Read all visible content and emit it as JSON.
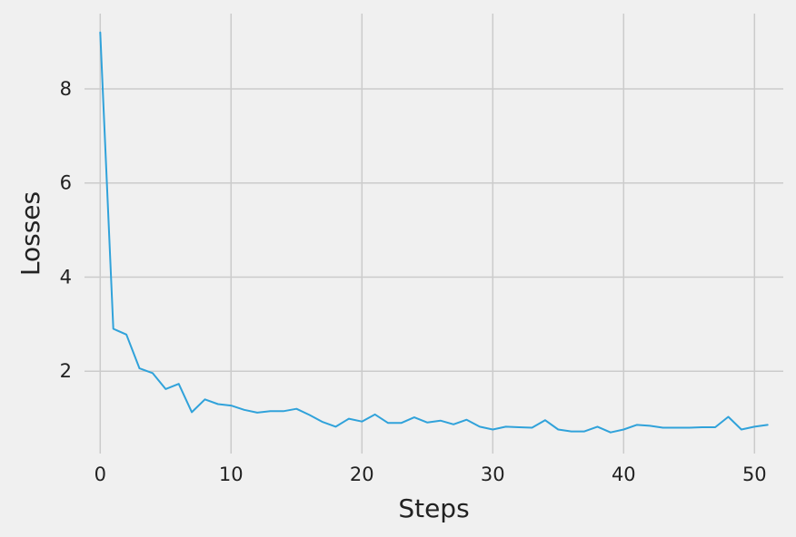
{
  "chart_data": {
    "type": "line",
    "title": "",
    "xlabel": "Steps",
    "ylabel": "Losses",
    "xlim": [
      -1.2,
      52.2
    ],
    "ylim": [
      0.25,
      9.6
    ],
    "xticks": [
      0,
      10,
      20,
      30,
      40,
      50
    ],
    "yticks": [
      2,
      4,
      6,
      8
    ],
    "grid": true,
    "colors": {
      "background": "#f0f0f0",
      "grid": "#cbcbcb",
      "line": "#30a2da"
    },
    "series": [
      {
        "x": [
          0,
          1,
          2,
          3,
          4,
          5,
          6,
          7,
          8,
          9,
          10,
          11,
          12,
          13,
          14,
          15,
          16,
          17,
          18,
          19,
          20,
          21,
          22,
          23,
          24,
          25,
          26,
          27,
          28,
          29,
          30,
          31,
          32,
          33,
          34,
          35,
          36,
          37,
          38,
          39,
          40,
          41,
          42,
          43,
          44,
          45,
          46,
          47,
          48,
          49,
          50,
          51
        ],
        "values": [
          9.2,
          2.9,
          2.78,
          2.06,
          1.96,
          1.62,
          1.73,
          1.13,
          1.4,
          1.3,
          1.27,
          1.18,
          1.12,
          1.15,
          1.15,
          1.2,
          1.07,
          0.92,
          0.82,
          0.99,
          0.93,
          1.08,
          0.9,
          0.9,
          1.02,
          0.91,
          0.95,
          0.87,
          0.97,
          0.82,
          0.76,
          0.82,
          0.81,
          0.8,
          0.96,
          0.76,
          0.72,
          0.72,
          0.82,
          0.7,
          0.76,
          0.86,
          0.84,
          0.8,
          0.8,
          0.8,
          0.81,
          0.81,
          1.03,
          0.76,
          0.82,
          0.86
        ]
      }
    ]
  }
}
